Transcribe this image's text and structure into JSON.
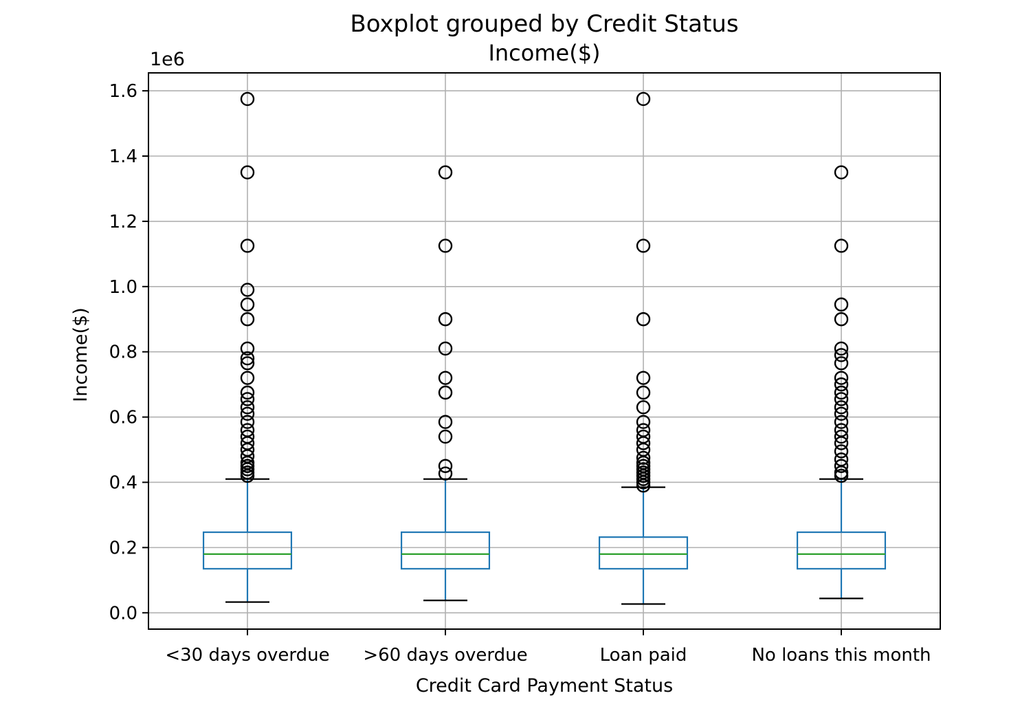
{
  "chart_data": {
    "type": "boxplot",
    "title": "Boxplot grouped by Credit Status",
    "subtitle": "Income($)",
    "xlabel": "Credit Card Payment Status",
    "ylabel": "Income($)",
    "y_offset_label": "1e6",
    "ylim": [
      -0.05,
      1.655
    ],
    "y_ticks": [
      0.0,
      0.2,
      0.4,
      0.6,
      0.8,
      1.0,
      1.2,
      1.4,
      1.6
    ],
    "y_tick_labels": [
      "0.0",
      "0.2",
      "0.4",
      "0.6",
      "0.8",
      "1.0",
      "1.2",
      "1.4",
      "1.6"
    ],
    "grid": true,
    "categories": [
      "<30 days overdue",
      ">60 days overdue",
      "Loan paid",
      "No loans this month"
    ],
    "boxes": [
      {
        "whisker_low": 0.033,
        "q1": 0.135,
        "median": 0.18,
        "q3": 0.247,
        "whisker_high": 0.41,
        "fliers": [
          0.42,
          0.43,
          0.44,
          0.45,
          0.46,
          0.48,
          0.5,
          0.52,
          0.54,
          0.56,
          0.585,
          0.61,
          0.63,
          0.655,
          0.675,
          0.72,
          0.765,
          0.78,
          0.81,
          0.9,
          0.945,
          0.99,
          1.125,
          1.35,
          1.575
        ]
      },
      {
        "whisker_low": 0.038,
        "q1": 0.135,
        "median": 0.18,
        "q3": 0.247,
        "whisker_high": 0.41,
        "fliers": [
          0.427,
          0.45,
          0.54,
          0.585,
          0.675,
          0.72,
          0.81,
          0.9,
          1.125,
          1.35
        ]
      },
      {
        "whisker_low": 0.027,
        "q1": 0.135,
        "median": 0.18,
        "q3": 0.232,
        "whisker_high": 0.385,
        "fliers": [
          0.39,
          0.4,
          0.41,
          0.42,
          0.43,
          0.44,
          0.45,
          0.46,
          0.475,
          0.5,
          0.52,
          0.54,
          0.56,
          0.585,
          0.63,
          0.675,
          0.72,
          0.9,
          1.125,
          1.575
        ]
      },
      {
        "whisker_low": 0.044,
        "q1": 0.135,
        "median": 0.18,
        "q3": 0.247,
        "whisker_high": 0.41,
        "fliers": [
          0.42,
          0.43,
          0.45,
          0.47,
          0.495,
          0.52,
          0.54,
          0.56,
          0.585,
          0.61,
          0.63,
          0.655,
          0.675,
          0.7,
          0.72,
          0.765,
          0.79,
          0.81,
          0.9,
          0.945,
          1.125,
          1.35
        ]
      }
    ]
  }
}
